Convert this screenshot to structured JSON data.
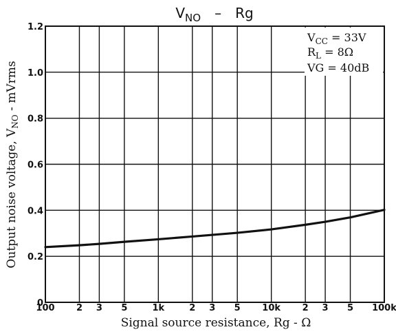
{
  "chart_data": {
    "type": "line",
    "title": {
      "main": "V",
      "sub": "NO",
      "sep": "–",
      "rest": "Rg"
    },
    "xlabel": "Signal source resistance, Rg - Ω",
    "ylabel": {
      "pre": "Output noise voltage, V",
      "sub": "NO",
      "post": " - mVrms"
    },
    "x_scale": "log",
    "xlim": [
      100,
      100000
    ],
    "ylim": [
      0,
      1.2
    ],
    "grid": true,
    "x_gridlines": [
      100,
      200,
      300,
      500,
      1000,
      2000,
      3000,
      5000,
      10000,
      20000,
      30000,
      50000,
      100000
    ],
    "y_gridlines": [
      0,
      0.2,
      0.4,
      0.6,
      0.8,
      1.0,
      1.2
    ],
    "x_ticks": [
      {
        "value": 100,
        "label": "100"
      },
      {
        "value": 200,
        "label": "2"
      },
      {
        "value": 300,
        "label": "3"
      },
      {
        "value": 500,
        "label": "5"
      },
      {
        "value": 1000,
        "label": "1k"
      },
      {
        "value": 2000,
        "label": "2"
      },
      {
        "value": 3000,
        "label": "3"
      },
      {
        "value": 5000,
        "label": "5"
      },
      {
        "value": 10000,
        "label": "10k"
      },
      {
        "value": 20000,
        "label": "2"
      },
      {
        "value": 30000,
        "label": "3"
      },
      {
        "value": 50000,
        "label": "5"
      },
      {
        "value": 100000,
        "label": "100k"
      }
    ],
    "y_ticks": [
      {
        "value": 0,
        "label": "0"
      },
      {
        "value": 0.2,
        "label": "0.2"
      },
      {
        "value": 0.4,
        "label": "0.4"
      },
      {
        "value": 0.6,
        "label": "0.6"
      },
      {
        "value": 0.8,
        "label": "0.8"
      },
      {
        "value": 1.0,
        "label": "1.0"
      },
      {
        "value": 1.2,
        "label": "1.2"
      }
    ],
    "series": [
      {
        "x": [
          100,
          200,
          300,
          500,
          1000,
          2000,
          3000,
          5000,
          10000,
          20000,
          30000,
          50000,
          100000
        ],
        "y": [
          0.24,
          0.248,
          0.254,
          0.263,
          0.274,
          0.286,
          0.293,
          0.302,
          0.317,
          0.337,
          0.35,
          0.369,
          0.402
        ]
      }
    ],
    "conditions": [
      {
        "pre": "V",
        "sub": "CC",
        "post": " = 33V"
      },
      {
        "pre": "R",
        "sub": "L",
        "post": " = 8Ω"
      },
      {
        "pre": "VG = 40dB",
        "sub": "",
        "post": ""
      }
    ]
  }
}
